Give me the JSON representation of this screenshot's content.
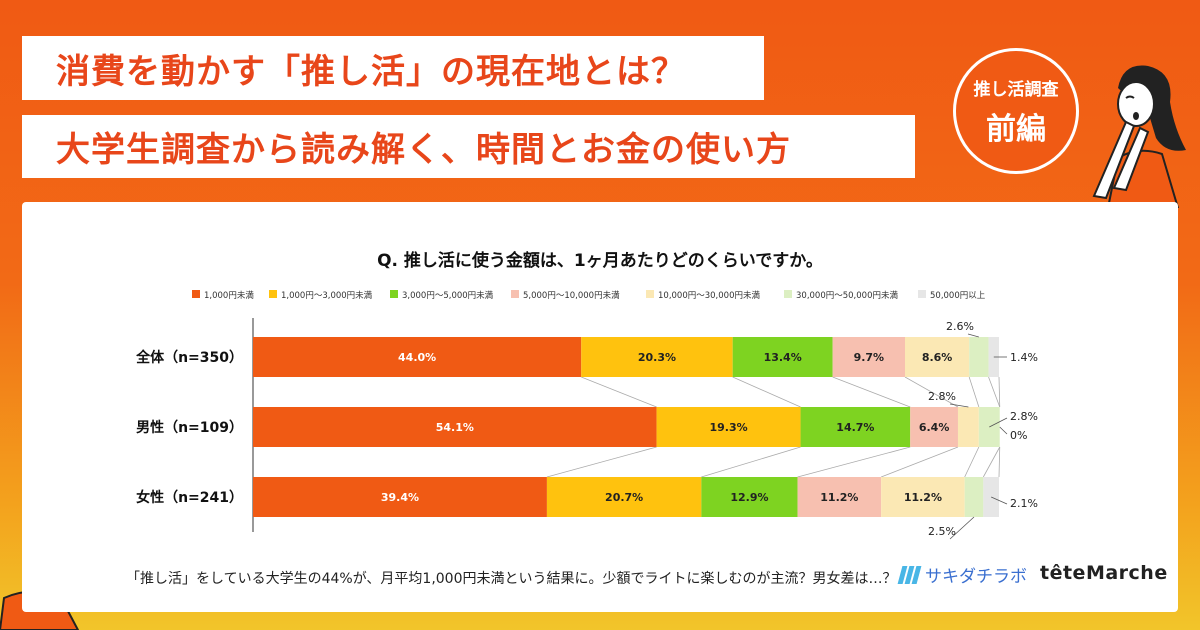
{
  "header": {
    "title_line1": "消費を動かす「推し活」の現在地とは？",
    "title_line2": "大学生調査から読み解く、時間とお金の使い方"
  },
  "badge": {
    "line1": "推し活調査",
    "line2": "前編"
  },
  "caption": "「推し活」をしている大学生の44%が、月平均1,000円未満という結果に。少額でライトに楽しむのが主流？男女差は…？",
  "logos": {
    "brand1": "サキダチラボ",
    "brand2": "têteMarche"
  },
  "colors": {
    "accent": "#f05a14",
    "series": [
      "#f05a14",
      "#ffc20e",
      "#7ed321",
      "#f7c0b0",
      "#fbe8b4",
      "#dcefc2",
      "#e6e6e6"
    ]
  },
  "chart_data": {
    "type": "bar",
    "orientation": "horizontal-stacked-100",
    "title": "Q. 推し活に使う金額は、1ヶ月あたりどのくらいですか。",
    "categories": [
      "全体（n=350）",
      "男性（n=109）",
      "女性（n=241）"
    ],
    "series": [
      {
        "name": "1,000円未満",
        "values": [
          44.0,
          54.1,
          39.4
        ],
        "labels": [
          "44.0%",
          "54.1%",
          "39.4%"
        ]
      },
      {
        "name": "1,000円〜3,000円未満",
        "values": [
          20.3,
          19.3,
          20.7
        ],
        "labels": [
          "20.3%",
          "19.3%",
          "20.7%"
        ]
      },
      {
        "name": "3,000円〜5,000円未満",
        "values": [
          13.4,
          14.7,
          12.9
        ],
        "labels": [
          "13.4%",
          "14.7%",
          "12.9%"
        ]
      },
      {
        "name": "5,000円〜10,000円未満",
        "values": [
          9.7,
          6.4,
          11.2
        ],
        "labels": [
          "9.7%",
          "6.4%",
          "11.2%"
        ]
      },
      {
        "name": "10,000円〜30,000円未満",
        "values": [
          8.6,
          2.8,
          11.2
        ],
        "labels": [
          "8.6%",
          "2.8%",
          "11.2%"
        ]
      },
      {
        "name": "30,000円〜50,000円未満",
        "values": [
          2.6,
          2.8,
          2.5
        ],
        "labels": [
          "2.6%",
          "2.8%",
          "2.5%"
        ]
      },
      {
        "name": "50,000円以上",
        "values": [
          1.4,
          0,
          2.1
        ],
        "labels": [
          "1.4%",
          "0%",
          "2.1%"
        ]
      }
    ],
    "xlim": [
      0,
      100
    ],
    "legend_position": "top"
  }
}
